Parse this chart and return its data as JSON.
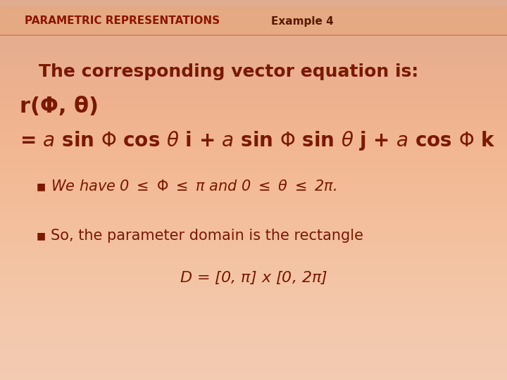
{
  "bg_top": "#f8e0d0",
  "bg_bottom": "#f0b898",
  "header_line_color": "#d4886a",
  "header_text_left": "PARAMETRIC REPRESENTATIONS",
  "header_text_right": "Example 4",
  "color_bold": "#8B1500",
  "color_dark": "#5a1800",
  "color_main": "#7a1800",
  "title_fontsize": 11,
  "line1": "The corresponding vector equation is:",
  "line1_fs": 18,
  "line2": "r(Φ, θ)",
  "line2_fs": 22,
  "line3a": "= ",
  "line3_fs": 20,
  "bullet1_text": "We have 0 ≤ Φ ≤ π and 0 ≤ θ ≤ 2π.",
  "bullet1_fs": 15,
  "bullet2_text": "So, the parameter domain is the rectangle",
  "bullet2_fs": 15,
  "line4_fs": 16
}
